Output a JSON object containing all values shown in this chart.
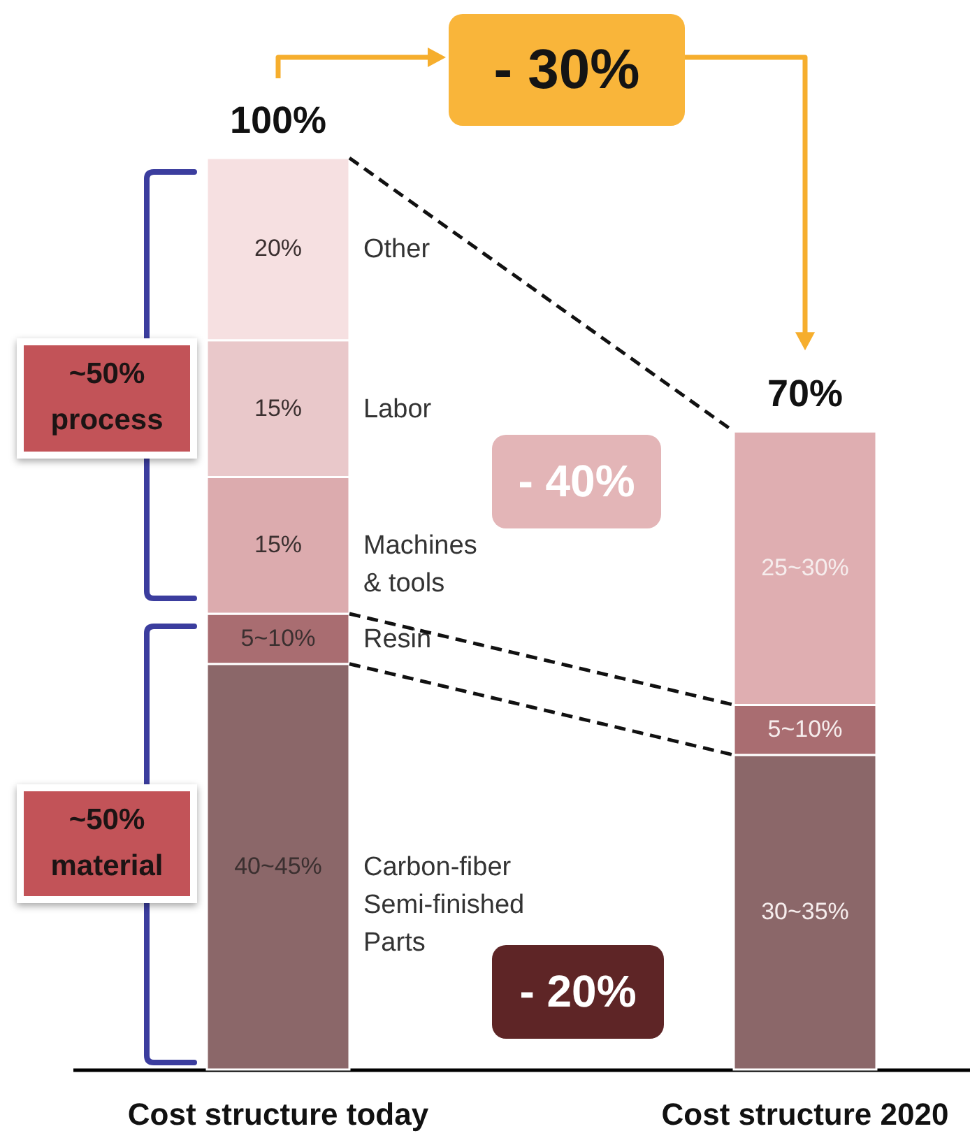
{
  "chart_data": {
    "type": "bar",
    "stacked": true,
    "categories": [
      "Cost structure today",
      "Cost structure 2020"
    ],
    "series": [
      {
        "name": "Carbon-fiber Semi-finished Parts",
        "color": "#8b6769",
        "values": [
          44.5,
          34.5
        ],
        "value_labels": [
          "40~45%",
          "30~35%"
        ]
      },
      {
        "name": "Resin",
        "color": "#a96d71",
        "values": [
          5.5,
          5.5
        ],
        "value_labels": [
          "5~10%",
          "5~10%"
        ]
      },
      {
        "color": "#dfaeb1",
        "values": [
          null,
          30
        ],
        "value_labels": [
          null,
          "25~30%"
        ]
      },
      {
        "name": "Machines & tools",
        "color": "#dcabae",
        "values": [
          15,
          null
        ],
        "value_labels": [
          "15%",
          null
        ]
      },
      {
        "name": "Labor",
        "color": "#e9c8ca",
        "values": [
          15,
          null
        ],
        "value_labels": [
          "15%",
          null
        ]
      },
      {
        "name": "Other",
        "color": "#f6e0e1",
        "values": [
          20,
          null
        ],
        "value_labels": [
          "20%",
          null
        ]
      }
    ],
    "totals": [
      "100%",
      "70%"
    ],
    "annotations": [
      "- 30%",
      "- 40%",
      "- 20%",
      "~50% process",
      "~50% material"
    ]
  }
}
